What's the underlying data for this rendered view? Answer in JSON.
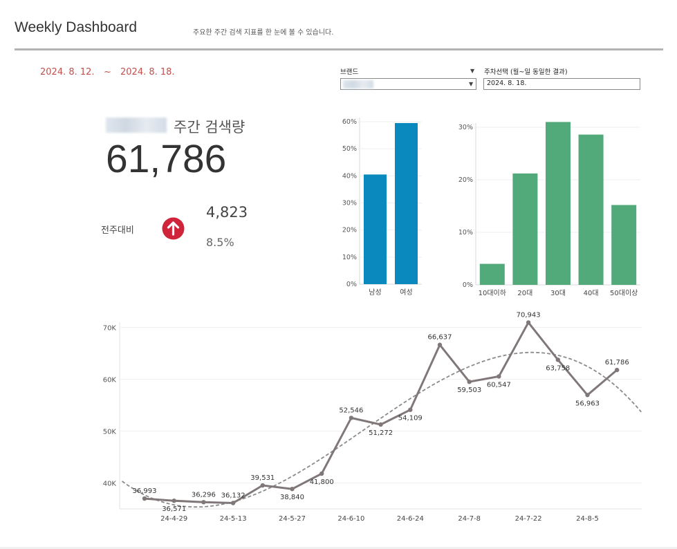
{
  "header": {
    "title": "Weekly Dashboard",
    "subtitle": "주요한 주간 검색 지표를 한 눈에 볼 수 있습니다."
  },
  "daterange": {
    "start": "2024. 8. 12.",
    "sep": "~",
    "end": "2024. 8. 18."
  },
  "filters": {
    "brand_label": "브랜드",
    "week_label": "주차선택 (월~일 동일한 결과)",
    "week_value": "2024. 8. 18."
  },
  "kpi": {
    "label": "주간 검색량",
    "value": "61,786",
    "wow_label": "전주대비",
    "delta_abs": "4,823",
    "delta_pct": "8.5%"
  },
  "colors": {
    "gender": "#0a89bf",
    "age": "#52a97a",
    "line": "#807878",
    "trend": "#8a8a8a",
    "accent": "#c0504d",
    "arrow": "#d0243b"
  },
  "chart_data": [
    {
      "type": "bar",
      "categories": [
        "남성",
        "여성"
      ],
      "values": [
        40.5,
        59.5
      ],
      "ylim": [
        0,
        60
      ],
      "yticks": [
        "0%",
        "10%",
        "20%",
        "30%",
        "40%",
        "50%",
        "60%"
      ]
    },
    {
      "type": "bar",
      "categories": [
        "10대이하",
        "20대",
        "30대",
        "40대",
        "50대이상"
      ],
      "values": [
        4.0,
        21.2,
        31.0,
        28.6,
        15.2
      ],
      "ylim": [
        0,
        30
      ],
      "yticks": [
        "0%",
        "10%",
        "20%",
        "30%"
      ]
    },
    {
      "type": "line",
      "xticks": [
        "24-4-29",
        "24-5-13",
        "24-5-27",
        "24-6-10",
        "24-6-24",
        "24-7-8",
        "24-7-22",
        "24-8-5"
      ],
      "yticks": [
        "40K",
        "50K",
        "60K",
        "70K"
      ],
      "ylim": [
        35000,
        71000
      ],
      "values": [
        36993,
        36571,
        36296,
        36132,
        39531,
        38840,
        41800,
        52546,
        51272,
        54109,
        66637,
        59503,
        60547,
        70943,
        63758,
        56963,
        61786
      ],
      "labels": [
        "36,993",
        "36,571",
        "36,296",
        "36,132",
        "39,531",
        "38,840",
        "41,800",
        "52,546",
        "51,272",
        "54,109",
        "66,637",
        "59,503",
        "60,547",
        "70,943",
        "63,758",
        "56,963",
        "61,786"
      ],
      "trend": "polynomial"
    }
  ]
}
